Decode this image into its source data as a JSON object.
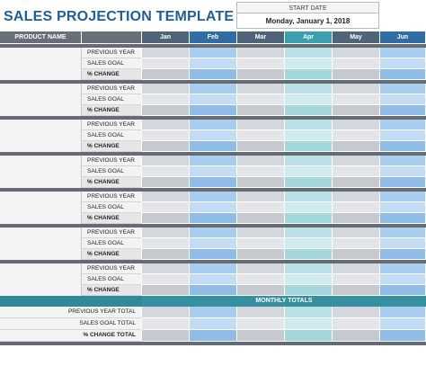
{
  "title": "SALES PROJECTION TEMPLATE",
  "start_date": {
    "label": "START DATE",
    "value": "Monday, January 1, 2018"
  },
  "header": {
    "product_name": "PRODUCT NAME",
    "months": [
      "Jan",
      "Feb",
      "Mar",
      "Apr",
      "May",
      "Jun"
    ]
  },
  "product_rows": [
    "PREVIOUS YEAR",
    "SALES GOAL",
    "% CHANGE"
  ],
  "product_count": 7,
  "monthly_totals": {
    "title": "MONTHLY TOTALS",
    "rows": [
      "PREVIOUS YEAR TOTAL",
      "SALES GOAL TOTAL",
      "% CHANGE TOTAL"
    ]
  },
  "colors": {
    "title": "#1f5f95",
    "header_gray": "#696f78",
    "month_headers": [
      "#4f6479",
      "#2f6da4",
      "#4f6479",
      "#3aa0ad",
      "#4f6479",
      "#2f6da4"
    ],
    "month_rows": {
      "previous": [
        "#d4d7dc",
        "#a9cdee",
        "#d4d7dc",
        "#b9e1e6",
        "#d4d7dc",
        "#a9cdee"
      ],
      "goal": [
        "#e3e5e8",
        "#c3dcf3",
        "#e3e5e8",
        "#cfeaee",
        "#e3e5e8",
        "#c3dcf3"
      ],
      "change": [
        "#c6c9ce",
        "#8fbde8",
        "#c6c9ce",
        "#a4d6dd",
        "#c6c9ce",
        "#8fbde8"
      ]
    },
    "totals_bar": "#3591a0"
  }
}
